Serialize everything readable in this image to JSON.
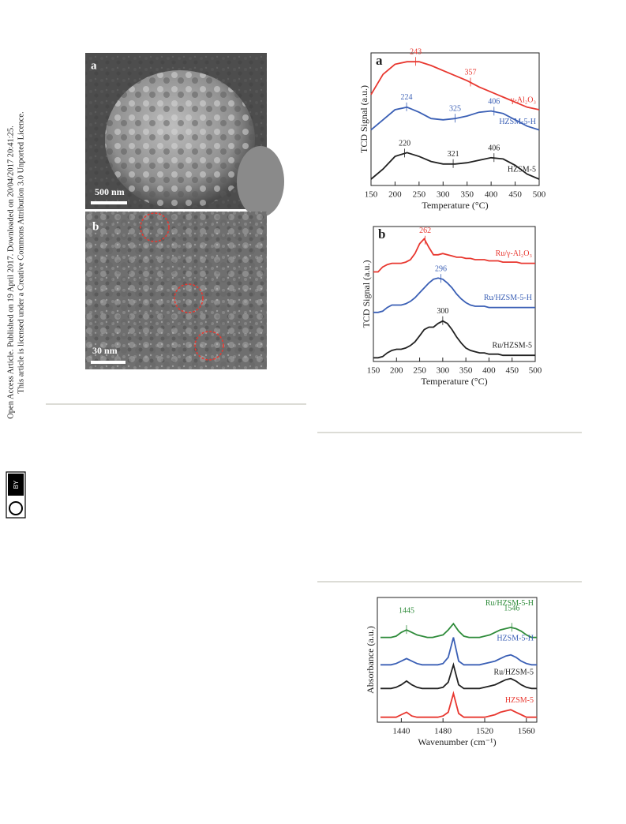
{
  "sidebar": {
    "line1": "Open Access Article. Published on 19 April 2017. Downloaded on 20/04/2017 20:41:25.",
    "line2": "This article is licensed under a Creative Commons Attribution 3.0 Unported Licence.",
    "badge": "BY"
  },
  "images": [
    {
      "label": "a",
      "scale_bar": "500 nm"
    },
    {
      "label": "b",
      "scale_bar": "30 nm"
    }
  ],
  "chart_data": [
    {
      "type": "line",
      "panel": "a",
      "xlabel": "Temperature (°C)",
      "ylabel": "TCD Signal (a.u.)",
      "x": [
        150,
        175,
        200,
        225,
        250,
        275,
        300,
        325,
        350,
        375,
        400,
        425,
        450,
        475,
        500
      ],
      "xlim": [
        150,
        500
      ],
      "xticks": [
        150,
        200,
        250,
        300,
        350,
        400,
        450,
        500
      ],
      "ylim": [
        0,
        10.5
      ],
      "series": [
        {
          "name": "γ-Al₂O₃",
          "color": "#e8372f",
          "values": [
            7.2,
            8.8,
            9.6,
            9.8,
            9.8,
            9.5,
            9.1,
            8.7,
            8.3,
            7.8,
            7.4,
            7.0,
            6.6,
            6.2,
            6.0
          ],
          "peaks": [
            243,
            357
          ]
        },
        {
          "name": "HZSM-5-H",
          "color": "#3a5fb5",
          "values": [
            4.4,
            5.2,
            6.0,
            6.2,
            5.8,
            5.3,
            5.2,
            5.3,
            5.5,
            5.8,
            5.9,
            5.7,
            5.2,
            4.7,
            4.4
          ],
          "peaks": [
            224,
            325,
            406
          ]
        },
        {
          "name": "HZSM-5",
          "color": "#222222",
          "values": [
            0.5,
            1.3,
            2.3,
            2.6,
            2.3,
            1.9,
            1.7,
            1.7,
            1.8,
            2.0,
            2.2,
            2.1,
            1.6,
            0.9,
            0.5
          ],
          "peaks": [
            220,
            321,
            406
          ]
        }
      ]
    },
    {
      "type": "line",
      "panel": "b",
      "xlabel": "Temperature (°C)",
      "ylabel": "TCD Signal (a.u.)",
      "x": [
        150,
        160,
        170,
        180,
        190,
        200,
        210,
        220,
        230,
        240,
        250,
        260,
        270,
        280,
        290,
        300,
        310,
        320,
        330,
        340,
        350,
        360,
        370,
        380,
        390,
        400,
        410,
        420,
        430,
        440,
        450,
        460,
        470,
        480,
        490,
        500
      ],
      "xlim": [
        150,
        500
      ],
      "xticks": [
        150,
        200,
        250,
        300,
        350,
        400,
        450,
        500
      ],
      "ylim": [
        0,
        11
      ],
      "series": [
        {
          "name": "Ru/γ-Al₂O₃",
          "color": "#e8372f",
          "values": [
            7.3,
            7.3,
            7.7,
            7.9,
            8.0,
            8.0,
            8.0,
            8.1,
            8.3,
            8.8,
            9.6,
            10.0,
            9.3,
            8.7,
            8.7,
            8.8,
            8.7,
            8.6,
            8.5,
            8.5,
            8.4,
            8.4,
            8.3,
            8.3,
            8.3,
            8.2,
            8.2,
            8.2,
            8.1,
            8.1,
            8.1,
            8.1,
            8.0,
            8.0,
            8.0,
            8.0
          ],
          "peaks": [
            262
          ]
        },
        {
          "name": "Ru/HZSM-5-H",
          "color": "#3a5fb5",
          "values": [
            4.0,
            4.0,
            4.1,
            4.4,
            4.6,
            4.6,
            4.6,
            4.7,
            4.9,
            5.2,
            5.6,
            6.0,
            6.4,
            6.7,
            6.8,
            6.7,
            6.4,
            6.0,
            5.5,
            5.1,
            4.8,
            4.6,
            4.5,
            4.5,
            4.5,
            4.4,
            4.4,
            4.4,
            4.4,
            4.4,
            4.4,
            4.4,
            4.4,
            4.4,
            4.4,
            4.4
          ],
          "peaks": [
            296
          ]
        },
        {
          "name": "Ru/HZSM-5",
          "color": "#222222",
          "values": [
            0.3,
            0.3,
            0.4,
            0.7,
            0.9,
            1.0,
            1.0,
            1.1,
            1.3,
            1.6,
            2.1,
            2.6,
            2.8,
            2.8,
            3.1,
            3.3,
            3.1,
            2.6,
            2.0,
            1.5,
            1.1,
            0.9,
            0.8,
            0.7,
            0.7,
            0.6,
            0.6,
            0.6,
            0.5,
            0.5,
            0.5,
            0.5,
            0.5,
            0.5,
            0.5,
            0.5
          ],
          "peaks": [
            300
          ]
        }
      ]
    },
    {
      "type": "line",
      "xlabel": "Wavenumber (cm⁻¹)",
      "ylabel": "Absorbance (a.u.)",
      "x": [
        1420,
        1425,
        1430,
        1435,
        1440,
        1445,
        1450,
        1455,
        1460,
        1465,
        1470,
        1475,
        1480,
        1485,
        1490,
        1495,
        1500,
        1505,
        1510,
        1515,
        1520,
        1525,
        1530,
        1535,
        1540,
        1545,
        1550,
        1555,
        1560,
        1565,
        1570
      ],
      "xlim": [
        1417,
        1570
      ],
      "xticks": [
        1440,
        1480,
        1520,
        1560
      ],
      "ylim": [
        0,
        10
      ],
      "series": [
        {
          "name": "Ru/HZSM-5-H",
          "color": "#2e8b3a",
          "values": [
            6.8,
            6.8,
            6.8,
            6.9,
            7.2,
            7.4,
            7.2,
            7.0,
            6.9,
            6.8,
            6.8,
            6.9,
            7.0,
            7.4,
            7.9,
            7.3,
            6.9,
            6.8,
            6.8,
            6.8,
            6.9,
            7.0,
            7.2,
            7.4,
            7.5,
            7.6,
            7.5,
            7.3,
            7.0,
            6.8,
            6.8
          ],
          "peaks": [
            1445,
            1546
          ]
        },
        {
          "name": "HZSM-5-H",
          "color": "#3a5fb5",
          "values": [
            4.6,
            4.6,
            4.6,
            4.7,
            4.9,
            5.1,
            4.9,
            4.7,
            4.6,
            4.6,
            4.6,
            4.6,
            4.7,
            5.2,
            6.8,
            4.9,
            4.6,
            4.6,
            4.6,
            4.6,
            4.7,
            4.8,
            4.9,
            5.1,
            5.3,
            5.4,
            5.2,
            4.9,
            4.7,
            4.6,
            4.6
          ]
        },
        {
          "name": "Ru/HZSM-5",
          "color": "#222222",
          "values": [
            2.7,
            2.7,
            2.7,
            2.8,
            3.0,
            3.3,
            3.0,
            2.8,
            2.7,
            2.7,
            2.7,
            2.7,
            2.8,
            3.2,
            4.6,
            3.0,
            2.7,
            2.7,
            2.7,
            2.7,
            2.8,
            2.9,
            3.0,
            3.2,
            3.4,
            3.5,
            3.3,
            3.0,
            2.8,
            2.7,
            2.7
          ]
        },
        {
          "name": "HZSM-5",
          "color": "#e8372f",
          "values": [
            0.4,
            0.4,
            0.4,
            0.4,
            0.6,
            0.8,
            0.5,
            0.4,
            0.4,
            0.4,
            0.4,
            0.4,
            0.5,
            0.8,
            2.3,
            0.7,
            0.4,
            0.4,
            0.4,
            0.4,
            0.4,
            0.5,
            0.6,
            0.8,
            0.9,
            1.0,
            0.8,
            0.6,
            0.4,
            0.4,
            0.4
          ]
        }
      ]
    }
  ]
}
